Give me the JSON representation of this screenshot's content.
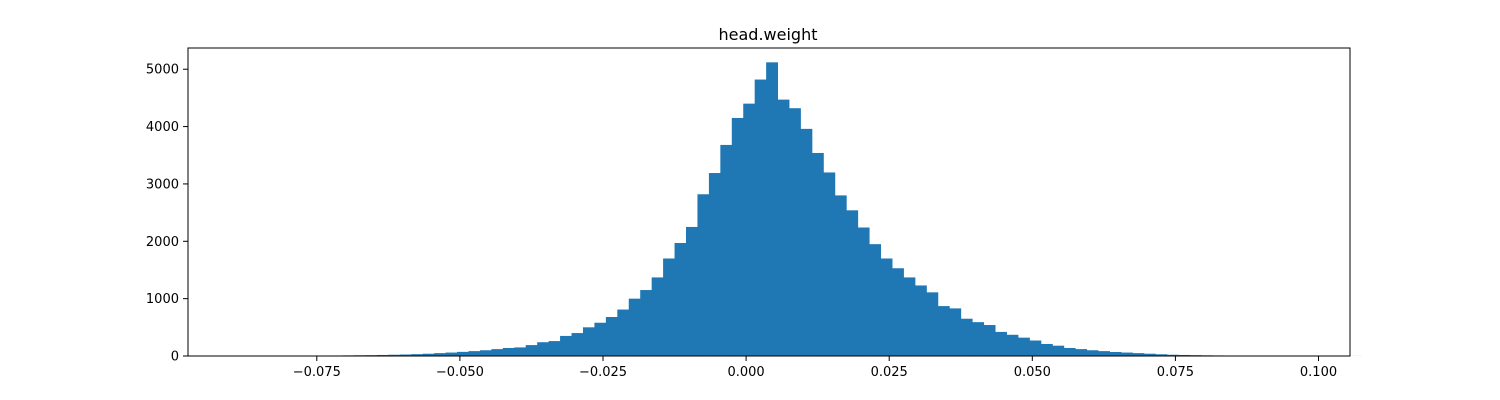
{
  "chart_data": {
    "type": "bar",
    "title": "head.weight",
    "xlabel": "",
    "ylabel": "",
    "xlim": [
      -0.0975,
      0.1055
    ],
    "ylim": [
      0,
      5370
    ],
    "bar_color": "#1f77b4",
    "grid": false,
    "legend": "none",
    "x_ticks": [
      -0.075,
      -0.05,
      -0.025,
      0.0,
      0.025,
      0.05,
      0.075,
      0.1
    ],
    "x_tick_labels": [
      "−0.075",
      "−0.050",
      "−0.025",
      "0.000",
      "0.025",
      "0.050",
      "0.075",
      "0.100"
    ],
    "y_ticks": [
      0,
      1000,
      2000,
      3000,
      4000,
      5000
    ],
    "y_tick_labels": [
      "0",
      "1000",
      "2000",
      "3000",
      "4000",
      "5000"
    ],
    "bin_start": -0.0925,
    "bin_width": 0.002,
    "values": [
      1,
      1,
      2,
      2,
      3,
      3,
      4,
      5,
      6,
      8,
      9,
      11,
      13,
      15,
      18,
      22,
      26,
      32,
      40,
      50,
      60,
      72,
      85,
      100,
      120,
      140,
      150,
      190,
      240,
      260,
      350,
      400,
      500,
      580,
      680,
      810,
      1000,
      1150,
      1370,
      1700,
      1970,
      2250,
      2820,
      3190,
      3680,
      4150,
      4400,
      4820,
      5120,
      4470,
      4320,
      3960,
      3540,
      3200,
      2800,
      2540,
      2240,
      1950,
      1700,
      1530,
      1370,
      1230,
      1110,
      870,
      830,
      650,
      590,
      540,
      420,
      370,
      320,
      270,
      210,
      180,
      140,
      120,
      100,
      85,
      70,
      60,
      50,
      40,
      30,
      22,
      18,
      15,
      12,
      10,
      8,
      6,
      5,
      4,
      3,
      2,
      2,
      1,
      1,
      1,
      1,
      1
    ]
  }
}
